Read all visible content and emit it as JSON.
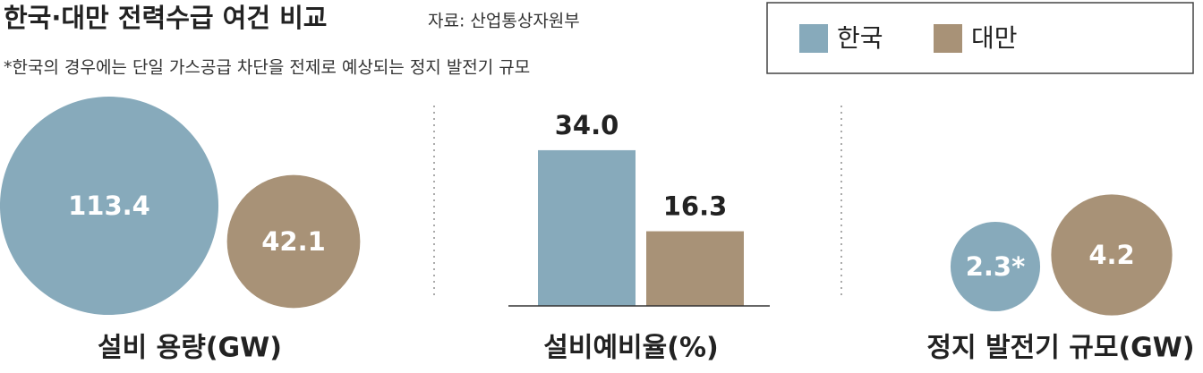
{
  "header": {
    "title": "한국·대만 전력수급 여건 비교",
    "source": "자료: 산업통상자원부",
    "note": "*한국의 경우에는 단일 가스공급 차단을 전제로 예상되는 정지 발전기 규모"
  },
  "chart_data": [
    {
      "type": "bubble",
      "title": "설비 용량(GW)",
      "series": [
        {
          "name": "한국",
          "color": "#87aabb",
          "values": [
            113.4
          ]
        },
        {
          "name": "대만",
          "color": "#a89277",
          "values": [
            42.1
          ]
        }
      ]
    },
    {
      "type": "bar",
      "title": "설비예비율(%)",
      "series": [
        {
          "name": "한국",
          "color": "#87aabb",
          "values": [
            34.0
          ],
          "value_labels": [
            "34.0"
          ]
        },
        {
          "name": "대만",
          "color": "#a89277",
          "values": [
            16.3
          ],
          "value_labels": [
            "16.3"
          ]
        }
      ]
    },
    {
      "type": "bubble",
      "title": "정지 발전기 규모(GW)",
      "series": [
        {
          "name": "한국",
          "color": "#87aabb",
          "values": [
            2.3
          ],
          "value_labels": [
            "2.3*"
          ]
        },
        {
          "name": "대만",
          "color": "#a89277",
          "values": [
            4.2
          ],
          "value_labels": [
            "4.2"
          ]
        }
      ]
    }
  ]
}
